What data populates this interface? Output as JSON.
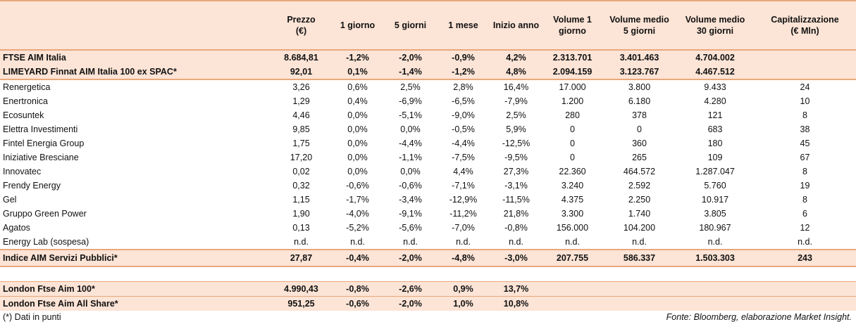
{
  "header": {
    "columns": [
      "Prezzo\n(€)",
      "1 giorno",
      "5 giorni",
      "1 mese",
      "Inizio anno",
      "Volume 1\ngiorno",
      "Volume medio\n5 giorni",
      "Volume medio\n30 giorni",
      "Capitalizzazione\n(€ Mln)"
    ]
  },
  "groups": [
    {
      "rows": [
        {
          "label": "FTSE AIM Italia",
          "cells": [
            "8.684,81",
            "-1,2%",
            "-2,0%",
            "-0,9%",
            "4,2%",
            "2.313.701",
            "3.401.463",
            "4.704.002"
          ]
        },
        {
          "label": "LIMEYARD Finnat AIM Italia 100 ex SPAC*",
          "cells": [
            "92,01",
            "0,1%",
            "-1,4%",
            "-1,2%",
            "4,8%",
            "2.094.159",
            "3.123.767",
            "4.467.512"
          ]
        }
      ]
    },
    {
      "rows": [
        {
          "label": "Renergetica",
          "cells": [
            "3,26",
            "0,6%",
            "2,5%",
            "2,8%",
            "16,4%",
            "17.000",
            "3.800",
            "9.433",
            "24"
          ]
        },
        {
          "label": "Enertronica",
          "cells": [
            "1,29",
            "0,4%",
            "-6,9%",
            "-6,5%",
            "-7,9%",
            "1.200",
            "6.180",
            "4.280",
            "10"
          ]
        },
        {
          "label": "Ecosuntek",
          "cells": [
            "4,46",
            "0,0%",
            "-5,1%",
            "-9,0%",
            "2,5%",
            "280",
            "378",
            "121",
            "8"
          ]
        },
        {
          "label": "Elettra Investimenti",
          "cells": [
            "9,85",
            "0,0%",
            "0,0%",
            "-0,5%",
            "5,9%",
            "0",
            "0",
            "683",
            "38"
          ]
        },
        {
          "label": "Fintel Energia Group",
          "cells": [
            "1,75",
            "0,0%",
            "-4,4%",
            "-4,4%",
            "-12,5%",
            "0",
            "360",
            "180",
            "45"
          ]
        },
        {
          "label": "Iniziative Bresciane",
          "cells": [
            "17,20",
            "0,0%",
            "-1,1%",
            "-7,5%",
            "-9,5%",
            "0",
            "265",
            "109",
            "67"
          ]
        },
        {
          "label": "Innovatec",
          "cells": [
            "0,02",
            "0,0%",
            "0,0%",
            "4,4%",
            "27,3%",
            "22.360",
            "464.572",
            "1.287.047",
            "8"
          ]
        },
        {
          "label": "Frendy Energy",
          "cells": [
            "0,32",
            "-0,6%",
            "-0,6%",
            "-7,1%",
            "-3,1%",
            "3.240",
            "2.592",
            "5.760",
            "19"
          ]
        },
        {
          "label": "Gel",
          "cells": [
            "1,15",
            "-1,7%",
            "-3,4%",
            "-12,9%",
            "-11,5%",
            "4.375",
            "2.250",
            "10.917",
            "8"
          ]
        },
        {
          "label": "Gruppo Green Power",
          "cells": [
            "1,90",
            "-4,0%",
            "-9,1%",
            "-11,2%",
            "21,8%",
            "3.300",
            "1.740",
            "3.805",
            "6"
          ]
        },
        {
          "label": "Agatos",
          "cells": [
            "0,13",
            "-5,2%",
            "-5,6%",
            "-7,0%",
            "-0,8%",
            "156.000",
            "104.200",
            "180.967",
            "12"
          ]
        },
        {
          "label": "Energy Lab (sospesa)",
          "cells": [
            "n.d.",
            "n.d.",
            "n.d.",
            "n.d.",
            "n.d.",
            "n.d.",
            "n.d.",
            "n.d.",
            "n.d."
          ]
        }
      ]
    },
    {
      "rows": [
        {
          "label": "Indice AIM Servizi Pubblici*",
          "cells": [
            "27,87",
            "-0,4%",
            "-2,0%",
            "-4,8%",
            "-3,0%",
            "207.755",
            "586.337",
            "1.503.303",
            "243"
          ]
        }
      ]
    },
    {
      "rows": [
        {
          "label": "London Ftse Aim 100*",
          "cells": [
            "4.990,43",
            "-0,8%",
            "-2,6%",
            "0,9%",
            "13,7%"
          ]
        },
        {
          "label": "London Ftse Aim All Share*",
          "cells": [
            "951,25",
            "-0,6%",
            "-2,0%",
            "1,0%",
            "10,8%"
          ]
        }
      ]
    }
  ],
  "notes": {
    "left": "(*) Dati in punti",
    "right": "Fonte: Bloomberg, elaborazione Market Insight."
  }
}
